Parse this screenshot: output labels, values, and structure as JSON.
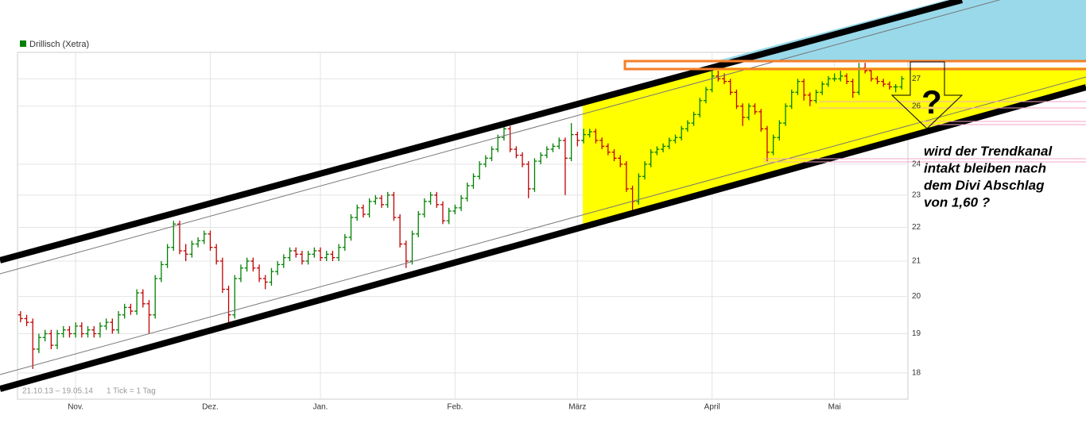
{
  "chart_data": {
    "type": "ohlc",
    "series": [
      {
        "name": "Drillisch (Xetra)",
        "color": "#008000",
        "up_color": "#008000",
        "down_color": "#c00000",
        "ohlc": [
          [
            19.5,
            19.6,
            19.3,
            19.4
          ],
          [
            19.4,
            19.5,
            19.2,
            19.3
          ],
          [
            19.3,
            19.4,
            18.1,
            18.6
          ],
          [
            18.6,
            19.0,
            18.5,
            18.9
          ],
          [
            18.9,
            19.1,
            18.8,
            19.0
          ],
          [
            19.0,
            19.1,
            18.6,
            18.7
          ],
          [
            18.7,
            19.1,
            18.6,
            19.0
          ],
          [
            19.0,
            19.2,
            18.9,
            19.1
          ],
          [
            19.1,
            19.2,
            18.9,
            19.0
          ],
          [
            19.0,
            19.3,
            18.9,
            19.2
          ],
          [
            19.2,
            19.3,
            18.9,
            19.0
          ],
          [
            19.0,
            19.2,
            18.9,
            19.1
          ],
          [
            19.1,
            19.2,
            18.9,
            19.0
          ],
          [
            19.0,
            19.3,
            18.9,
            19.2
          ],
          [
            19.2,
            19.4,
            19.1,
            19.3
          ],
          [
            19.3,
            19.4,
            19.0,
            19.1
          ],
          [
            19.1,
            19.6,
            19.0,
            19.5
          ],
          [
            19.5,
            19.8,
            19.4,
            19.7
          ],
          [
            19.7,
            19.8,
            19.5,
            19.6
          ],
          [
            19.6,
            20.2,
            19.5,
            20.1
          ],
          [
            20.1,
            20.2,
            19.7,
            19.8
          ],
          [
            19.8,
            19.9,
            19.0,
            19.5
          ],
          [
            19.5,
            20.6,
            19.4,
            20.5
          ],
          [
            20.5,
            21.0,
            20.4,
            20.9
          ],
          [
            20.9,
            21.5,
            20.8,
            21.4
          ],
          [
            21.4,
            22.2,
            21.3,
            22.1
          ],
          [
            22.1,
            22.2,
            21.2,
            21.3
          ],
          [
            21.3,
            21.5,
            21.0,
            21.2
          ],
          [
            21.2,
            21.6,
            21.1,
            21.5
          ],
          [
            21.5,
            21.7,
            21.4,
            21.6
          ],
          [
            21.6,
            21.9,
            21.5,
            21.8
          ],
          [
            21.8,
            21.9,
            21.3,
            21.4
          ],
          [
            21.4,
            21.5,
            20.9,
            21.0
          ],
          [
            21.0,
            21.1,
            20.1,
            20.2
          ],
          [
            20.2,
            20.3,
            19.3,
            19.5
          ],
          [
            19.5,
            20.6,
            19.4,
            20.5
          ],
          [
            20.5,
            20.9,
            20.4,
            20.8
          ],
          [
            20.8,
            21.1,
            20.7,
            21.0
          ],
          [
            21.0,
            21.1,
            20.7,
            20.8
          ],
          [
            20.8,
            20.9,
            20.4,
            20.5
          ],
          [
            20.5,
            20.6,
            20.2,
            20.4
          ],
          [
            20.4,
            20.8,
            20.3,
            20.7
          ],
          [
            20.7,
            21.0,
            20.6,
            20.9
          ],
          [
            20.9,
            21.2,
            20.8,
            21.1
          ],
          [
            21.1,
            21.4,
            21.0,
            21.3
          ],
          [
            21.3,
            21.4,
            21.1,
            21.2
          ],
          [
            21.2,
            21.3,
            20.9,
            21.0
          ],
          [
            21.0,
            21.3,
            20.9,
            21.2
          ],
          [
            21.2,
            21.4,
            21.1,
            21.3
          ],
          [
            21.3,
            21.4,
            21.0,
            21.1
          ],
          [
            21.1,
            21.3,
            21.0,
            21.2
          ],
          [
            21.2,
            21.3,
            21.0,
            21.1
          ],
          [
            21.1,
            21.5,
            21.0,
            21.4
          ],
          [
            21.4,
            21.8,
            21.3,
            21.7
          ],
          [
            21.7,
            22.4,
            21.6,
            22.3
          ],
          [
            22.3,
            22.7,
            22.2,
            22.6
          ],
          [
            22.6,
            22.7,
            22.3,
            22.4
          ],
          [
            22.4,
            22.9,
            22.3,
            22.8
          ],
          [
            22.8,
            23.0,
            22.7,
            22.9
          ],
          [
            22.9,
            23.0,
            22.6,
            22.7
          ],
          [
            22.7,
            23.1,
            22.6,
            23.0
          ],
          [
            23.0,
            23.1,
            22.2,
            22.3
          ],
          [
            22.3,
            22.4,
            21.4,
            21.5
          ],
          [
            21.5,
            21.6,
            20.8,
            21.0
          ],
          [
            21.0,
            21.9,
            20.9,
            21.8
          ],
          [
            21.8,
            22.5,
            21.7,
            22.4
          ],
          [
            22.4,
            22.9,
            22.3,
            22.8
          ],
          [
            22.8,
            23.1,
            22.7,
            23.0
          ],
          [
            23.0,
            23.1,
            22.6,
            22.7
          ],
          [
            22.7,
            22.8,
            22.1,
            22.2
          ],
          [
            22.2,
            22.6,
            22.1,
            22.5
          ],
          [
            22.5,
            22.7,
            22.4,
            22.6
          ],
          [
            22.6,
            23.0,
            22.5,
            22.9
          ],
          [
            22.9,
            23.4,
            22.8,
            23.3
          ],
          [
            23.3,
            23.7,
            23.2,
            23.6
          ],
          [
            23.6,
            24.1,
            23.5,
            24.0
          ],
          [
            24.0,
            24.3,
            23.9,
            24.2
          ],
          [
            24.2,
            24.6,
            24.1,
            24.5
          ],
          [
            24.5,
            25.0,
            24.4,
            24.9
          ],
          [
            24.9,
            25.4,
            24.8,
            25.2
          ],
          [
            25.2,
            25.3,
            24.4,
            24.5
          ],
          [
            24.5,
            24.6,
            24.2,
            24.3
          ],
          [
            24.3,
            24.4,
            23.9,
            24.0
          ],
          [
            24.0,
            24.1,
            22.9,
            23.2
          ],
          [
            23.2,
            24.2,
            23.1,
            24.1
          ],
          [
            24.1,
            24.4,
            24.0,
            24.3
          ],
          [
            24.3,
            24.6,
            24.2,
            24.5
          ],
          [
            24.5,
            24.7,
            24.4,
            24.6
          ],
          [
            24.6,
            24.9,
            24.5,
            24.8
          ],
          [
            24.8,
            24.9,
            23.0,
            24.2
          ],
          [
            24.2,
            25.4,
            24.1,
            25.0
          ],
          [
            25.0,
            25.1,
            24.6,
            24.8
          ],
          [
            24.8,
            25.2,
            24.7,
            25.0
          ],
          [
            25.0,
            25.2,
            24.9,
            25.1
          ],
          [
            25.1,
            25.2,
            24.7,
            24.8
          ],
          [
            24.8,
            24.9,
            24.5,
            24.6
          ],
          [
            24.6,
            24.7,
            24.3,
            24.4
          ],
          [
            24.4,
            24.5,
            24.1,
            24.2
          ],
          [
            24.2,
            24.3,
            23.9,
            24.0
          ],
          [
            24.0,
            24.1,
            23.1,
            23.2
          ],
          [
            23.2,
            23.3,
            22.5,
            22.8
          ],
          [
            22.8,
            23.7,
            22.7,
            23.6
          ],
          [
            23.6,
            24.1,
            23.5,
            24.0
          ],
          [
            24.0,
            24.5,
            23.9,
            24.4
          ],
          [
            24.4,
            24.6,
            24.3,
            24.5
          ],
          [
            24.5,
            24.7,
            24.4,
            24.6
          ],
          [
            24.6,
            24.9,
            24.5,
            24.8
          ],
          [
            24.8,
            25.0,
            24.7,
            24.9
          ],
          [
            24.9,
            25.3,
            24.8,
            25.2
          ],
          [
            25.2,
            25.5,
            25.1,
            25.4
          ],
          [
            25.4,
            25.8,
            25.3,
            25.7
          ],
          [
            25.7,
            26.3,
            25.6,
            26.2
          ],
          [
            26.2,
            26.7,
            26.1,
            26.6
          ],
          [
            26.6,
            27.3,
            26.5,
            27.1
          ],
          [
            27.1,
            27.3,
            26.9,
            27.0
          ],
          [
            27.0,
            27.2,
            26.8,
            26.9
          ],
          [
            26.9,
            27.0,
            26.4,
            26.5
          ],
          [
            26.5,
            26.6,
            25.9,
            26.0
          ],
          [
            26.0,
            26.1,
            25.3,
            25.6
          ],
          [
            25.6,
            26.1,
            25.5,
            26.0
          ],
          [
            26.0,
            26.1,
            25.7,
            25.8
          ],
          [
            25.8,
            25.9,
            25.1,
            25.2
          ],
          [
            25.2,
            25.3,
            24.1,
            24.4
          ],
          [
            24.4,
            25.0,
            24.3,
            24.9
          ],
          [
            24.9,
            25.5,
            24.8,
            25.4
          ],
          [
            25.4,
            26.1,
            25.3,
            26.0
          ],
          [
            26.0,
            26.6,
            25.9,
            26.5
          ],
          [
            26.5,
            27.0,
            26.4,
            26.9
          ],
          [
            26.9,
            27.0,
            26.2,
            26.4
          ],
          [
            26.4,
            26.5,
            26.0,
            26.2
          ],
          [
            26.2,
            26.6,
            26.1,
            26.5
          ],
          [
            26.5,
            26.9,
            26.4,
            26.8
          ],
          [
            26.8,
            27.1,
            26.7,
            27.0
          ],
          [
            27.0,
            27.2,
            26.9,
            27.0
          ],
          [
            27.0,
            27.3,
            26.9,
            27.1
          ],
          [
            27.1,
            27.2,
            26.8,
            26.9
          ],
          [
            26.9,
            27.0,
            26.3,
            26.5
          ],
          [
            26.5,
            27.6,
            26.4,
            27.4
          ],
          [
            27.4,
            27.6,
            27.2,
            27.3
          ],
          [
            27.3,
            27.4,
            26.9,
            27.0
          ],
          [
            27.0,
            27.1,
            26.8,
            26.9
          ],
          [
            26.9,
            27.0,
            26.7,
            26.8
          ],
          [
            26.8,
            26.9,
            26.6,
            26.7
          ],
          [
            26.7,
            26.8,
            26.5,
            26.7
          ],
          [
            26.7,
            27.1,
            26.6,
            27.0
          ]
        ]
      }
    ],
    "xlim": [
      -0.5,
      145
    ],
    "xticks": [
      {
        "value": 9,
        "label": "Nov."
      },
      {
        "value": 31,
        "label": "Dez."
      },
      {
        "value": 49,
        "label": "Jan."
      },
      {
        "value": 71,
        "label": "Feb."
      },
      {
        "value": 91,
        "label": "März"
      },
      {
        "value": 113,
        "label": "April"
      },
      {
        "value": 133,
        "label": "Mai"
      }
    ],
    "ylim": [
      17.36,
      28
    ],
    "yticks": [
      18,
      19,
      20,
      21,
      22,
      23,
      24,
      26,
      27
    ],
    "log_scale": true,
    "grid": true,
    "range_label": "21.10.13 – 19.05.14",
    "tick_note": "1 Tick = 1 Tag",
    "annotation_mark": "?",
    "annotation_text": [
      "wird der Trendkanal",
      "intakt bleiben nach",
      "dem Divi Abschlag",
      "von 1,60 ?"
    ]
  }
}
